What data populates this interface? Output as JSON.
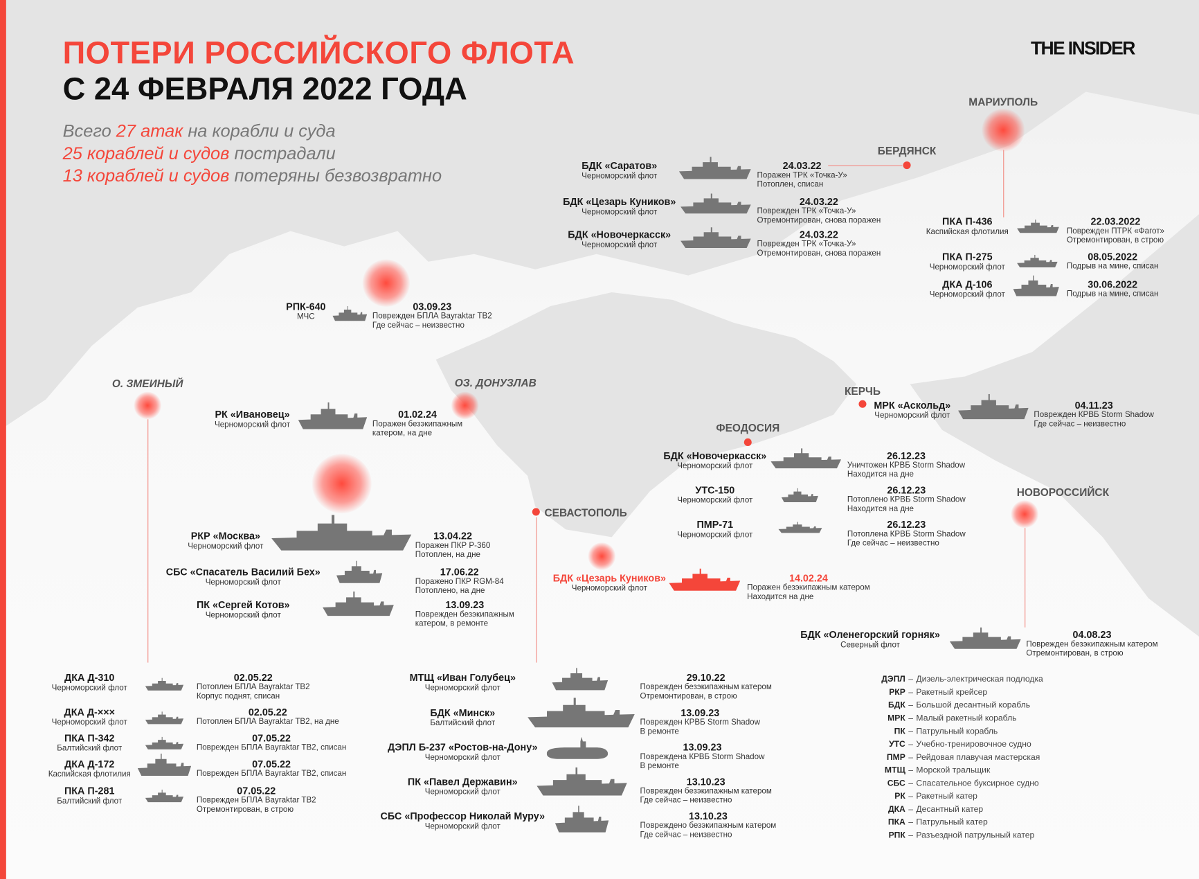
{
  "header": {
    "title_line1": "ПОТЕРИ РОССИЙСКОГО ФЛОТА",
    "title_line2": "С 24 ФЕВРАЛЯ 2022 ГОДА",
    "stats": [
      [
        {
          "text": "Всего ",
          "hl": false
        },
        {
          "text": "27 атак",
          "hl": true
        },
        {
          "text": " на корабли и суда",
          "hl": false
        }
      ],
      [
        {
          "text": "25 кораблей и судов",
          "hl": true
        },
        {
          "text": " пострадали",
          "hl": false
        }
      ],
      [
        {
          "text": "13 кораблей и судов",
          "hl": true
        },
        {
          "text": " потеряны безвозвратно",
          "hl": false
        }
      ]
    ]
  },
  "logo": "THE INSIDER",
  "colors": {
    "accent": "#f4463a",
    "land": "#e3e3e3",
    "ship": "#767676",
    "text": "#1a1a1a"
  },
  "places": {
    "mariupol": "МАРИУПОЛЬ",
    "berdyansk": "БЕРДЯНСК",
    "zmeiny": "О. ЗМЕИНЫЙ",
    "donuzlav": "ОЗ. ДОНУЗЛАВ",
    "kerch": "КЕРЧЬ",
    "feodosia": "ФЕОДОСИЯ",
    "sevastopol": "СЕВАСТОПОЛЬ",
    "novorossiysk": "НОВОРОССИЙСК"
  },
  "entries": [
    {
      "name": "БДК «Саратов»",
      "fleet": "Черноморский флот",
      "date": "24.03.22",
      "status": [
        "Поражен ТРК «Точка-У»",
        "Потоплен, списан"
      ],
      "icon": "ship-silhouette"
    },
    {
      "name": "БДК «Цезарь Куников»",
      "fleet": "Черноморский флот",
      "date": "24.03.22",
      "status": [
        "Поврежден ТРК «Точка-У»",
        "Отремонтирован, снова поражен"
      ],
      "icon": "ship-silhouette"
    },
    {
      "name": "БДК «Новочеркасск»",
      "fleet": "Черноморский флот",
      "date": "24.03.22",
      "status": [
        "Поврежден ТРК «Точка-У»",
        "Отремонтирован, снова поражен"
      ],
      "icon": "ship-silhouette"
    },
    {
      "name": "ПКА П-436",
      "fleet": "Каспийская флотилия",
      "date": "22.03.2022",
      "status": [
        "Поврежден ПТРК «Фагот»",
        "Отремонтирован, в строю"
      ],
      "icon": "ship-silhouette"
    },
    {
      "name": "ПКА П-275",
      "fleet": "Черноморский флот",
      "date": "08.05.2022",
      "status": [
        "Подрыв на мине, списан"
      ],
      "icon": "ship-silhouette"
    },
    {
      "name": "ДКА Д-106",
      "fleet": "Черноморский флот",
      "date": "30.06.2022",
      "status": [
        "Подрыв на мине, списан"
      ],
      "icon": "ship-silhouette"
    },
    {
      "name": "РПК-640",
      "fleet": "МЧС",
      "date": "03.09.23",
      "status": [
        "Поврежден БПЛА Bayraktar TB2",
        "Где сейчас – неизвестно"
      ],
      "icon": "ship-silhouette"
    },
    {
      "name": "РК «Ивановец»",
      "fleet": "Черноморский флот",
      "date": "01.02.24",
      "status": [
        "Поражен безэкипажным",
        "катером, на дне"
      ],
      "icon": "ship-silhouette"
    },
    {
      "name": "РКР «Москва»",
      "fleet": "Черноморский флот",
      "date": "13.04.22",
      "status": [
        "Поражен ПКР Р-360",
        "Потоплен, на дне"
      ],
      "icon": "ship-silhouette"
    },
    {
      "name": "СБС «Спасатель Василий Бех»",
      "fleet": "Черноморский флот",
      "date": "17.06.22",
      "status": [
        "Поражено ПКР RGM-84",
        "Потоплено, на дне"
      ],
      "icon": "ship-silhouette"
    },
    {
      "name": "ПК «Сергей Котов»",
      "fleet": "Черноморский флот",
      "date": "13.09.23",
      "status": [
        "Поврежден безэкипажным",
        "катером, в ремонте"
      ],
      "icon": "ship-silhouette"
    },
    {
      "name": "ДКА Д-310",
      "fleet": "Черноморский флот",
      "date": "02.05.22",
      "status": [
        "Потоплен БПЛА Bayraktar TB2",
        "Корпус поднят, списан"
      ],
      "icon": "ship-silhouette"
    },
    {
      "name": "ДКА Д-×××",
      "fleet": "Черноморский флот",
      "date": "02.05.22",
      "status": [
        "Потоплен БПЛА Bayraktar TB2, на дне"
      ],
      "icon": "ship-silhouette"
    },
    {
      "name": "ПКА П-342",
      "fleet": "Балтийский флот",
      "date": "07.05.22",
      "status": [
        "Поврежден БПЛА Bayraktar TB2, списан"
      ],
      "icon": "ship-silhouette"
    },
    {
      "name": "ДКА Д-172",
      "fleet": "Каспийская флотилия",
      "date": "07.05.22",
      "status": [
        "Поврежден БПЛА Bayraktar TB2, списан"
      ],
      "icon": "ship-silhouette"
    },
    {
      "name": "ПКА П-281",
      "fleet": "Балтийский флот",
      "date": "07.05.22",
      "status": [
        "Поврежден БПЛА Bayraktar TB2",
        "Отремонтирован, в строю"
      ],
      "icon": "ship-silhouette"
    },
    {
      "name": "МТЩ «Иван Голубец»",
      "fleet": "Черноморский флот",
      "date": "29.10.22",
      "status": [
        "Поврежден безэкипажным катером",
        "Отремонтирован, в строю"
      ],
      "icon": "ship-silhouette"
    },
    {
      "name": "БДК «Минск»",
      "fleet": "Балтийский флот",
      "date": "13.09.23",
      "status": [
        "Поврежден КРВБ Storm Shadow",
        "В ремонте"
      ],
      "icon": "ship-silhouette"
    },
    {
      "name": "ДЭПЛ Б-237 «Ростов-на-Дону»",
      "fleet": "Черноморский флот",
      "date": "13.09.23",
      "status": [
        "Повреждена КРВБ Storm Shadow",
        "В ремонте"
      ],
      "icon": "submarine-silhouette"
    },
    {
      "name": "ПК «Павел Державин»",
      "fleet": "Черноморский флот",
      "date": "13.10.23",
      "status": [
        "Поврежден безэкипажным катером",
        "Где сейчас – неизвестно"
      ],
      "icon": "ship-silhouette"
    },
    {
      "name": "СБС «Профессор Николай Муру»",
      "fleet": "Черноморский флот",
      "date": "13.10.23",
      "status": [
        "Повреждено безэкипажным катером",
        "Где сейчас – неизвестно"
      ],
      "icon": "ship-silhouette"
    },
    {
      "name": "БДК «Новочеркасск»",
      "fleet": "Черноморский флот",
      "date": "26.12.23",
      "status": [
        "Уничтожен КРВБ Storm Shadow",
        "Находится на дне"
      ],
      "icon": "ship-silhouette"
    },
    {
      "name": "УТС-150",
      "fleet": "Черноморский флот",
      "date": "26.12.23",
      "status": [
        "Потоплено КРВБ Storm Shadow",
        "Находится на дне"
      ],
      "icon": "ship-silhouette"
    },
    {
      "name": "ПМР-71",
      "fleet": "Черноморский флот",
      "date": "26.12.23",
      "status": [
        "Потоплена КРВБ Storm Shadow",
        "Где сейчас – неизвестно"
      ],
      "icon": "ship-silhouette"
    },
    {
      "name": "БДК «Цезарь Куников»",
      "fleet": "Черноморский флот",
      "date": "14.02.24",
      "status": [
        "Поражен безэкипажным катером",
        "Находится на дне"
      ],
      "icon": "ship-silhouette",
      "highlight": true
    },
    {
      "name": "МРК «Аскольд»",
      "fleet": "Черноморский флот",
      "date": "04.11.23",
      "status": [
        "Поврежден КРВБ Storm Shadow",
        "Где сейчас – неизвестно"
      ],
      "icon": "ship-silhouette"
    },
    {
      "name": "БДК «Оленегорский горняк»",
      "fleet": "Северный флот",
      "date": "04.08.23",
      "status": [
        "Поврежден безэкипажным катером",
        "Отремонтирован, в строю"
      ],
      "icon": "ship-silhouette"
    }
  ],
  "legend": [
    {
      "abbr": "ДЭПЛ",
      "text": "Дизель-электрическая подлодка"
    },
    {
      "abbr": "РКР",
      "text": "Ракетный крейсер"
    },
    {
      "abbr": "БДК",
      "text": "Большой десантный корабль"
    },
    {
      "abbr": "МРК",
      "text": "Малый ракетный корабль"
    },
    {
      "abbr": "ПК",
      "text": "Патрульный корабль"
    },
    {
      "abbr": "УТС",
      "text": "Учебно-тренировочное судно"
    },
    {
      "abbr": "ПМР",
      "text": "Рейдовая плавучая мастерская"
    },
    {
      "abbr": "МТЩ",
      "text": "Морской тральщик"
    },
    {
      "abbr": "СБС",
      "text": "Спасательное буксирное судно"
    },
    {
      "abbr": "РК",
      "text": "Ракетный катер"
    },
    {
      "abbr": "ДКА",
      "text": "Десантный катер"
    },
    {
      "abbr": "ПКА",
      "text": "Патрульный катер"
    },
    {
      "abbr": "РПК",
      "text": "Разъездной патрульный катер"
    }
  ]
}
